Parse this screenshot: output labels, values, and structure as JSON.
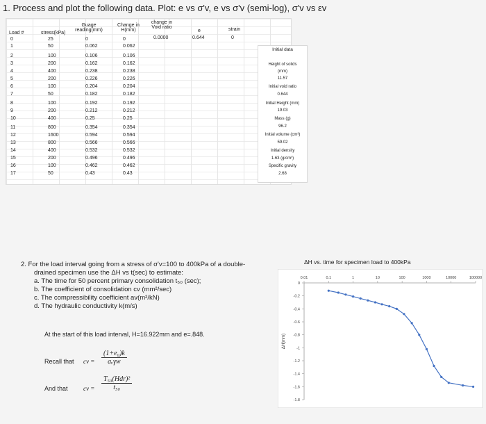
{
  "question1": "1. Process and plot the following data. Plot: e vs σ'v, e vs σ'v (semi-log), σ'v vs εv",
  "table": {
    "headers": {
      "load": "Load #",
      "stress": "stress(kPa)",
      "gauge": "Guage reading(mm)",
      "change_h": "Change in H(mm)",
      "change_void": "change in Void ratio",
      "e": "e",
      "strain": "strain"
    },
    "initial_row": {
      "change_void": "0.0000",
      "e": "0.644",
      "strain": "0"
    },
    "rows": [
      {
        "load": "0",
        "stress": "25",
        "gauge": "0",
        "change": "0"
      },
      {
        "load": "1",
        "stress": "50",
        "gauge": "0.062",
        "change": "0.062"
      },
      {
        "load": "2",
        "stress": "100",
        "gauge": "0.106",
        "change": "0.106"
      },
      {
        "load": "3",
        "stress": "200",
        "gauge": "0.162",
        "change": "0.162"
      },
      {
        "load": "4",
        "stress": "400",
        "gauge": "0.238",
        "change": "0.238"
      },
      {
        "load": "5",
        "stress": "200",
        "gauge": "0.226",
        "change": "0.226"
      },
      {
        "load": "6",
        "stress": "100",
        "gauge": "0.204",
        "change": "0.204"
      },
      {
        "load": "7",
        "stress": "50",
        "gauge": "0.182",
        "change": "0.182"
      },
      {
        "load": "8",
        "stress": "100",
        "gauge": "0.192",
        "change": "0.192"
      },
      {
        "load": "9",
        "stress": "200",
        "gauge": "0.212",
        "change": "0.212"
      },
      {
        "load": "10",
        "stress": "400",
        "gauge": "0.25",
        "change": "0.25"
      },
      {
        "load": "11",
        "stress": "800",
        "gauge": "0.354",
        "change": "0.354"
      },
      {
        "load": "12",
        "stress": "1600",
        "gauge": "0.594",
        "change": "0.594"
      },
      {
        "load": "13",
        "stress": "800",
        "gauge": "0.566",
        "change": "0.566"
      },
      {
        "load": "14",
        "stress": "400",
        "gauge": "0.532",
        "change": "0.532"
      },
      {
        "load": "15",
        "stress": "200",
        "gauge": "0.496",
        "change": "0.496"
      },
      {
        "load": "16",
        "stress": "100",
        "gauge": "0.462",
        "change": "0.462"
      },
      {
        "load": "17",
        "stress": "50",
        "gauge": "0.43",
        "change": "0.43"
      }
    ]
  },
  "initial_data": {
    "title": "Initial data",
    "lines": [
      "Height of solids",
      "(mm)",
      "11.57",
      "Initial void ratio",
      "0.644",
      "Initial Height (mm)",
      "19.03",
      "Mass (g)",
      "96.2",
      "Initial volume (cm³)",
      "59.02",
      "Initial density",
      "1.63 (g/cm³)",
      "Specific gravity",
      "2.68"
    ]
  },
  "question2": {
    "intro1": "2.   For the load interval going from a stress of σ'v=100 to 400kPa of a double-",
    "intro2": "drained specimen use the ΔH vs t(sec) to estimate:",
    "items": [
      "a.   The time for 50 percent primary consolidation t₅₀ (sec);",
      "b.   The coefficient of consolidation cv (mm²/sec)",
      "c.   The compressibility coefficient av(m²/kN)",
      "d.   The hydraulic conductivity k(m/s)"
    ],
    "start_line": "At the start of this load interval, H=16.922mm and e=.848.",
    "recall": "Recall that",
    "and_that": "And that",
    "eq1_lhs": "cv =",
    "eq1_num": "(1+e₀)k",
    "eq1_den": "aᵥγw",
    "eq2_lhs": "cv =",
    "eq2_num": "T₅₀(Hdr)²",
    "eq2_den": "t₅₀"
  },
  "chart_data": {
    "type": "line",
    "title": "ΔH vs. time for specimen load to 400kPa",
    "xlabel": "",
    "ylabel": "ΔH(mm)",
    "x_scale": "log",
    "x_tick_labels": [
      "0.01",
      "0.1",
      "1",
      "10",
      "100",
      "1000",
      "10000",
      "100000"
    ],
    "y_tick_labels": [
      "0",
      "-0.2",
      "-0.4",
      "-0.6",
      "-0.8",
      "-1",
      "-1.2",
      "-1.4",
      "-1.6",
      "-1.8"
    ],
    "xlim": [
      0.01,
      100000
    ],
    "ylim": [
      -1.8,
      0
    ],
    "series_color": "#4472c4",
    "x": [
      0.1,
      0.25,
      0.5,
      1,
      2,
      4,
      8,
      15,
      30,
      60,
      120,
      250,
      500,
      1000,
      2000,
      4000,
      8000,
      30000,
      80000
    ],
    "y": [
      -0.12,
      -0.15,
      -0.18,
      -0.21,
      -0.24,
      -0.27,
      -0.3,
      -0.33,
      -0.36,
      -0.4,
      -0.48,
      -0.62,
      -0.8,
      -1.02,
      -1.28,
      -1.45,
      -1.54,
      -1.58,
      -1.6
    ]
  }
}
